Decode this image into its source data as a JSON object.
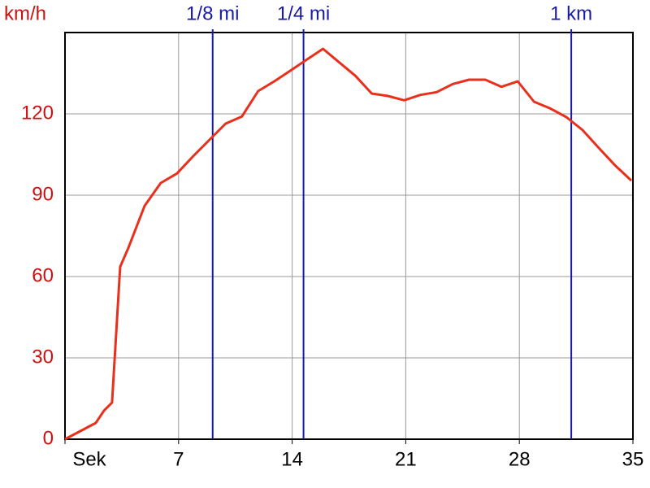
{
  "chart_data": {
    "type": "line",
    "y_label": "km/h",
    "x": [
      0,
      1.9,
      2.4,
      2.9,
      3.4,
      3.9,
      4.9,
      5.9,
      6.9,
      7.9,
      8.9,
      9.9,
      10.9,
      11.9,
      12.9,
      13.9,
      14.9,
      15.9,
      16.9,
      17.9,
      18.9,
      19.9,
      20.9,
      21.9,
      22.9,
      23.9,
      24.9,
      25.9,
      26.9,
      27.9,
      28.9,
      29.9,
      30.9,
      31.9,
      32.9,
      33.9,
      34.9
    ],
    "values": [
      0,
      6,
      10.5,
      13.5,
      63.6,
      70.5,
      86,
      94.5,
      98,
      104.4,
      110.4,
      116.4,
      119,
      128.4,
      132,
      136,
      140,
      144,
      139,
      134,
      127.5,
      126.6,
      125,
      127,
      128,
      131,
      132.6,
      132.6,
      130,
      132,
      124.5,
      122,
      118.8,
      114,
      107.4,
      101,
      95.4
    ],
    "color": "#e8301c",
    "xlim": [
      0,
      35
    ],
    "xticks": [
      {
        "value": 0,
        "label": "Sek"
      },
      7,
      14,
      21,
      28,
      35
    ],
    "ylim": [
      0,
      150
    ],
    "yticks": [
      0,
      30,
      60,
      90,
      120
    ],
    "grid": true,
    "markers": [
      {
        "label": "1/8 mi",
        "x": 9.1
      },
      {
        "label": "1/4 mi",
        "x": 14.7
      },
      {
        "label": "1 km",
        "x": 31.2
      }
    ],
    "marker_color": "#1a1aa8"
  }
}
